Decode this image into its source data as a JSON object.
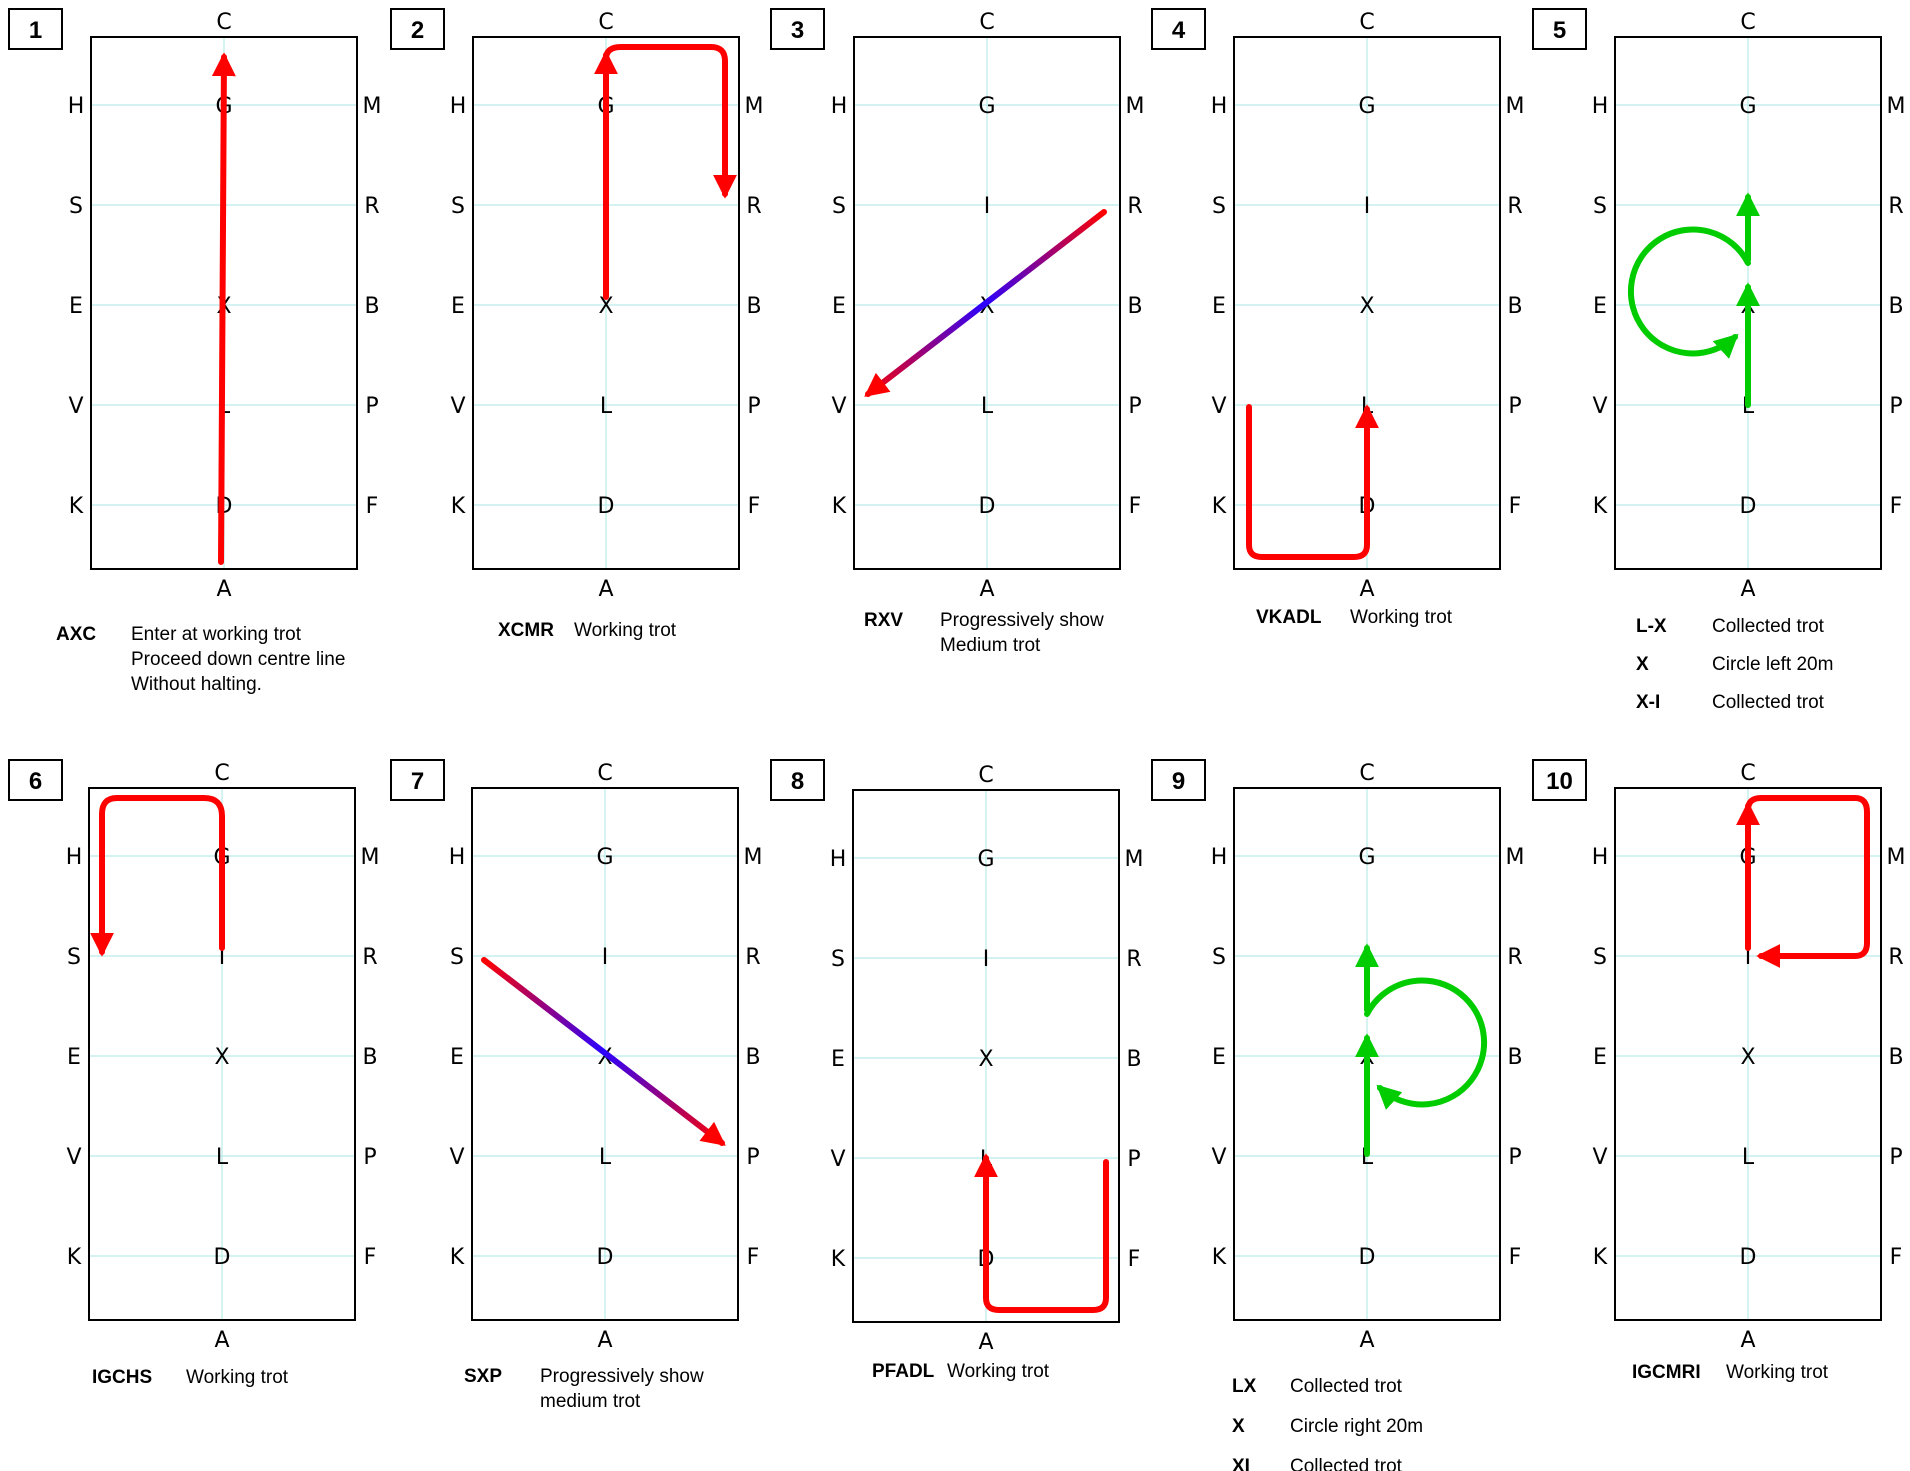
{
  "colors": {
    "red": "#ff0000",
    "green": "#00cc00",
    "blue": "#2a00ff",
    "gridline": "#b8ecea",
    "border": "#000000"
  },
  "arena_letters": {
    "top": "C",
    "bottom": "A",
    "left": [
      "H",
      "S",
      "E",
      "V",
      "K"
    ],
    "right": [
      "M",
      "R",
      "B",
      "P",
      "F"
    ],
    "centre": [
      "G",
      "I",
      "X",
      "L",
      "D"
    ]
  },
  "diagrams": [
    {
      "number": "1",
      "caption": [
        {
          "code": "AXC",
          "text": [
            "Enter at working trot",
            "Proceed down centre line",
            "Without halting."
          ]
        }
      ]
    },
    {
      "number": "2",
      "caption": [
        {
          "code": "XCMR",
          "text": [
            "Working trot"
          ]
        }
      ]
    },
    {
      "number": "3",
      "caption": [
        {
          "code": "RXV",
          "text": [
            "Progressively show",
            "Medium trot"
          ]
        }
      ]
    },
    {
      "number": "4",
      "caption": [
        {
          "code": "VKADL",
          "text": [
            "Working trot"
          ]
        }
      ]
    },
    {
      "number": "5",
      "caption": [
        {
          "code": "L-X",
          "text": [
            "Collected trot"
          ]
        },
        {
          "code": "X",
          "text": [
            "Circle left 20m"
          ]
        },
        {
          "code": "X-I",
          "text": [
            "Collected trot"
          ]
        }
      ]
    },
    {
      "number": "6",
      "caption": [
        {
          "code": "IGCHS",
          "text": [
            "Working trot"
          ]
        }
      ]
    },
    {
      "number": "7",
      "caption": [
        {
          "code": "SXP",
          "text": [
            "Progressively show",
            "medium trot"
          ]
        }
      ]
    },
    {
      "number": "8",
      "caption": [
        {
          "code": "PFADL",
          "text": [
            "Working trot"
          ]
        }
      ]
    },
    {
      "number": "9",
      "caption": [
        {
          "code": "LX",
          "text": [
            "Collected trot"
          ]
        },
        {
          "code": "X",
          "text": [
            "Circle right 20m"
          ]
        },
        {
          "code": "XI",
          "text": [
            "Collected trot"
          ]
        }
      ]
    },
    {
      "number": "10",
      "caption": [
        {
          "code": "IGCMRI",
          "text": [
            "Working trot"
          ]
        }
      ]
    }
  ]
}
